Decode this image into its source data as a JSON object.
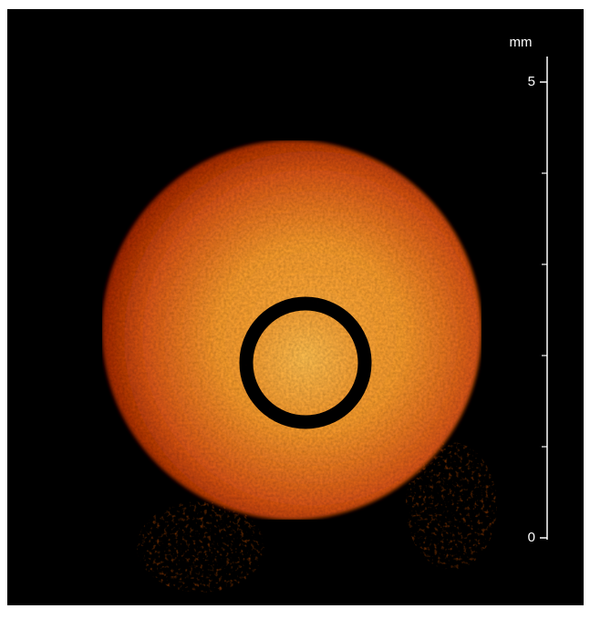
{
  "scale_bar": {
    "unit": "mm",
    "ylim": [
      0,
      5
    ],
    "yticks": [
      0,
      5
    ],
    "minor_ticks": [
      1,
      2,
      3,
      4
    ]
  }
}
